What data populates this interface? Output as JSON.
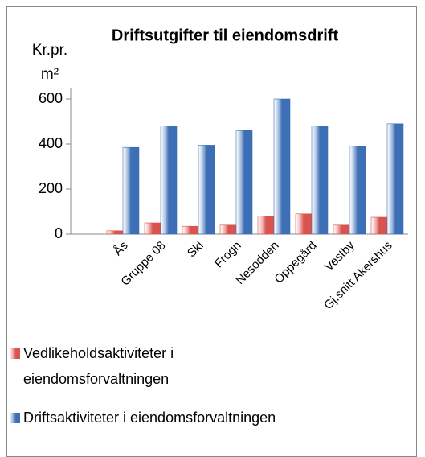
{
  "chart_data": {
    "type": "bar",
    "title": "Driftsutgifter til eiendomsdrift",
    "y_label": [
      "Kr.pr.",
      "m²"
    ],
    "categories": [
      "Ås",
      "Gruppe 08",
      "Ski",
      "Frogn",
      "Nesodden",
      "Oppegård",
      "Vestby",
      "Gj.snitt Akershus"
    ],
    "series": [
      {
        "name": "Vedlikeholdsaktiviteter i eiendomsforvaltningen",
        "color": "#d9534f",
        "values": [
          15,
          50,
          35,
          40,
          80,
          90,
          40,
          75
        ]
      },
      {
        "name": "Driftsaktiviteter i eiendomsforvaltningen",
        "color": "#3d6fb6",
        "values": [
          385,
          480,
          395,
          460,
          600,
          480,
          390,
          490
        ]
      }
    ],
    "ylim": [
      0,
      650
    ],
    "yticks": [
      0,
      200,
      400,
      600
    ],
    "grid": false,
    "legend": "bottom"
  }
}
